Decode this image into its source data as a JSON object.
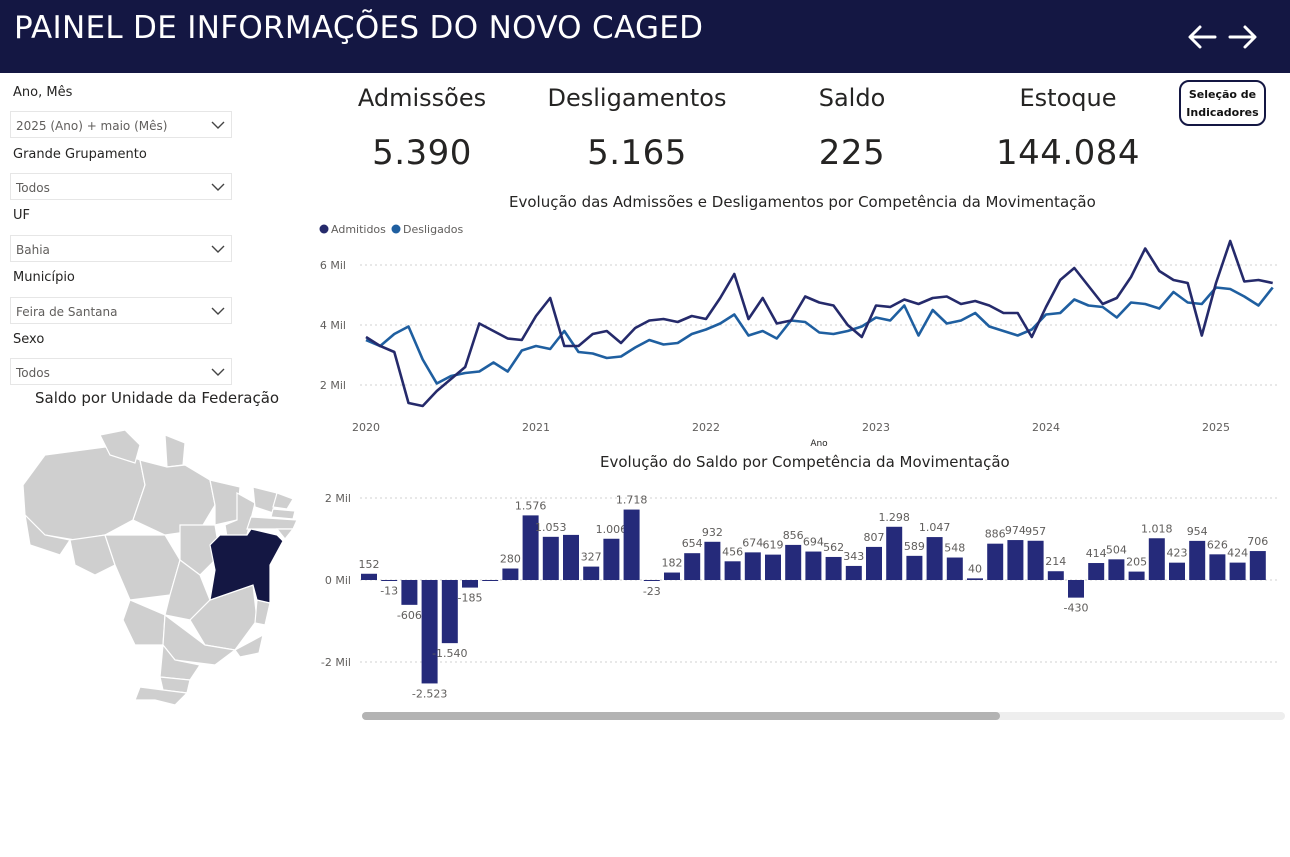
{
  "header": {
    "title": "PAINEL DE INFORMAÇÕES DO NOVO CAGED"
  },
  "colors": {
    "header_bg": "#141743",
    "admitidos": "#252a6b",
    "desligados": "#1f5fa0",
    "bars": "#252a7a",
    "highlight_state": "#141743",
    "map_fill": "#cfcfcf"
  },
  "filters": [
    {
      "label": "Ano, Mês",
      "value": "2025 (Ano) + maio (Mês)"
    },
    {
      "label": "Grande Grupamento",
      "value": "Todos"
    },
    {
      "label": "UF",
      "value": "Bahia"
    },
    {
      "label": "Município",
      "value": "Feira de Santana"
    },
    {
      "label": "Sexo",
      "value": "Todos"
    }
  ],
  "kpis": [
    {
      "label": "Admissões",
      "value": "5.390"
    },
    {
      "label": "Desligamentos",
      "value": "5.165"
    },
    {
      "label": "Saldo",
      "value": "225"
    },
    {
      "label": "Estoque",
      "value": "144.084"
    }
  ],
  "selection_button": {
    "line1": "Seleção de",
    "line2": "Indicadores"
  },
  "map": {
    "title": "Saldo por Unidade da Federação",
    "highlighted": "Bahia"
  },
  "chart_data": [
    {
      "type": "line",
      "title": "Evolução das Admissões e Desligamentos por Competência da Movimentação",
      "xlabel": "Ano",
      "ylabel": "",
      "x_ticks": [
        "2020",
        "2021",
        "2022",
        "2023",
        "2024",
        "2025"
      ],
      "y_ticks": [
        "2 Mil",
        "4 Mil",
        "6 Mil"
      ],
      "ylim": [
        1000,
        7000
      ],
      "legend_position": "top-left",
      "grid": true,
      "series": [
        {
          "name": "Admitidos",
          "values": [
            3600,
            3300,
            3100,
            1400,
            1300,
            1800,
            2200,
            2600,
            4050,
            3800,
            3550,
            3500,
            4300,
            4900,
            3300,
            3300,
            3700,
            3800,
            3400,
            3900,
            4150,
            4200,
            4100,
            4300,
            4200,
            4900,
            5700,
            4200,
            4900,
            4050,
            4150,
            4950,
            4750,
            4650,
            4000,
            3600,
            4650,
            4600,
            4850,
            4700,
            4900,
            4950,
            4700,
            4800,
            4650,
            4400,
            4400,
            3600,
            4600,
            5500,
            5900,
            5300,
            4700,
            4900,
            5600,
            6550,
            5800,
            5500,
            5400,
            3650,
            5400,
            6800,
            5450,
            5500,
            5400
          ]
        },
        {
          "name": "Desligados",
          "values": [
            3500,
            3300,
            3700,
            3950,
            2850,
            2050,
            2300,
            2400,
            2450,
            2750,
            2450,
            3150,
            3300,
            3200,
            3800,
            3100,
            3050,
            2900,
            2950,
            3250,
            3500,
            3350,
            3400,
            3700,
            3850,
            4050,
            4350,
            3650,
            3800,
            3550,
            4150,
            4100,
            3750,
            3700,
            3800,
            3950,
            4250,
            4150,
            4650,
            3650,
            4500,
            4050,
            4150,
            4400,
            3950,
            3800,
            3650,
            3850,
            4350,
            4400,
            4850,
            4650,
            4600,
            4250,
            4750,
            4700,
            4550,
            5100,
            4750,
            4700,
            5250,
            5200,
            4950,
            4650,
            5250
          ]
        }
      ]
    },
    {
      "type": "bar",
      "title": "Evolução do Saldo por Competência da Movimentação",
      "y_ticks": [
        "2 Mil",
        "0 Mil",
        "-2 Mil"
      ],
      "ylim": [
        -3000,
        2300
      ],
      "grid": true,
      "values": [
        152,
        -13,
        -606,
        -2523,
        -1540,
        -185,
        0,
        280,
        1576,
        1053,
        1100,
        327,
        1006,
        1718,
        -23,
        182,
        654,
        932,
        456,
        674,
        619,
        856,
        694,
        562,
        343,
        807,
        1298,
        589,
        1047,
        548,
        40,
        886,
        974,
        957,
        214,
        -430,
        414,
        504,
        205,
        1018,
        423,
        954,
        626,
        424,
        706
      ],
      "labels": [
        "152",
        "-13",
        "-606",
        "-2.523",
        "-1.540",
        "-185",
        "",
        "280",
        "1.576",
        "1.053",
        "",
        "327",
        "1.006",
        "1.718",
        "-23",
        "182",
        "654",
        "932",
        "456",
        "674",
        "619",
        "856",
        "694",
        "562",
        "343",
        "807",
        "1.298",
        "589",
        "1.047",
        "548",
        "40",
        "886",
        "974",
        "957",
        "214",
        "-430",
        "414",
        "504",
        "205",
        "1.018",
        "423",
        "954",
        "626",
        "424",
        "706"
      ]
    }
  ]
}
